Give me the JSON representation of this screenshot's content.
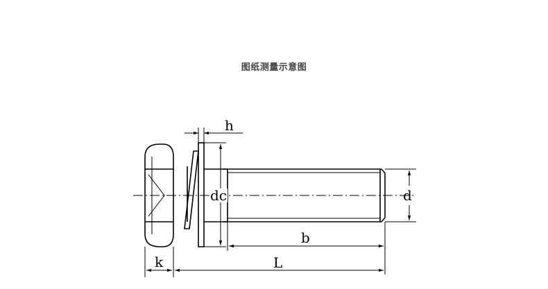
{
  "caption": "图纸测量示意图",
  "labels": {
    "h": "h",
    "dc": "dc",
    "d": "d",
    "b": "b",
    "k": "k",
    "L": "L"
  }
}
